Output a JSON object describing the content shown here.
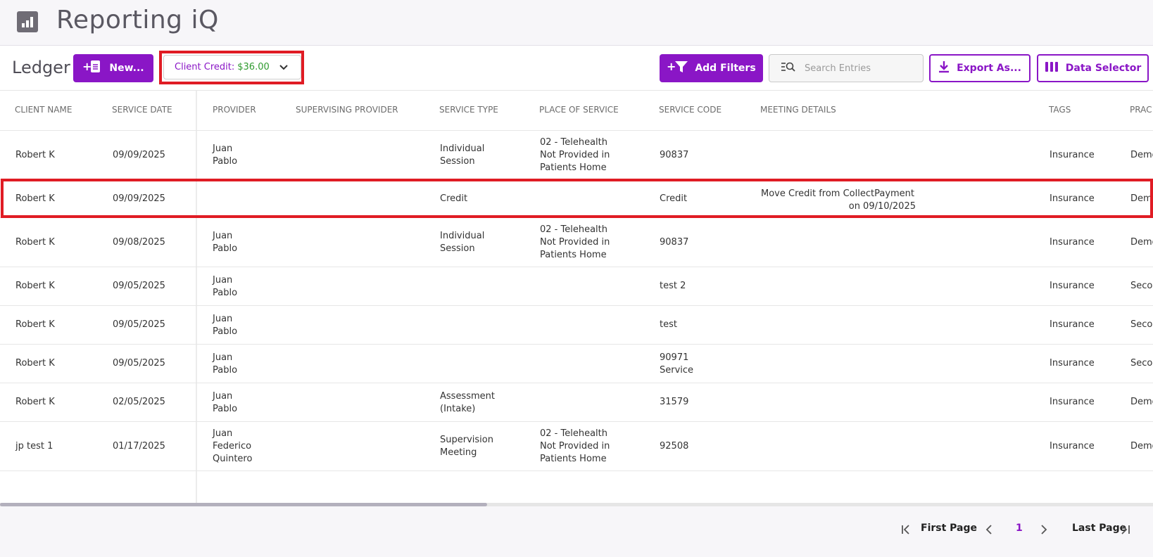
{
  "app": {
    "title": "Reporting iQ"
  },
  "toolbar": {
    "ledger_title": "Ledger",
    "new_label": "New...",
    "client_credit_label": "Client Credit:",
    "client_credit_value": "$36.00",
    "add_filters_label": "Add Filters",
    "search_placeholder": "Search Entries",
    "export_label": "Export As...",
    "data_selector_label": "Data Selector"
  },
  "table": {
    "headers": [
      "CLIENT NAME",
      "SERVICE DATE",
      "PROVIDER",
      "SUPERVISING PROVIDER",
      "SERVICE TYPE",
      "PLACE OF SERVICE",
      "SERVICE CODE",
      "MEETING DETAILS",
      "TAGS",
      "PRAC"
    ],
    "rows": [
      {
        "client": "Robert K",
        "date": "09/09/2025",
        "provider": "Juan Pablo",
        "supervising": "",
        "service_type": "Individual Session",
        "place": "02 - Telehealth Not Provided in Patients Home",
        "code": "90837",
        "meeting_1": "",
        "meeting_2": "",
        "tags": "Insurance",
        "prac": "Demo"
      },
      {
        "client": "Robert K",
        "date": "09/09/2025",
        "provider": "",
        "supervising": "",
        "service_type": "Credit",
        "place": "",
        "code": "Credit",
        "meeting_1": "Move Credit from CollectPayment",
        "meeting_2": "on 09/10/2025",
        "tags": "Insurance",
        "prac": "Demo"
      },
      {
        "client": "Robert K",
        "date": "09/08/2025",
        "provider": "Juan Pablo",
        "supervising": "",
        "service_type": "Individual Session",
        "place": "02 - Telehealth Not Provided in Patients Home",
        "code": "90837",
        "meeting_1": "",
        "meeting_2": "",
        "tags": "Insurance",
        "prac": "Demo"
      },
      {
        "client": "Robert K",
        "date": "09/05/2025",
        "provider": "Juan Pablo",
        "supervising": "",
        "service_type": "",
        "place": "",
        "code": "test 2",
        "meeting_1": "",
        "meeting_2": "",
        "tags": "Insurance",
        "prac": "Secon"
      },
      {
        "client": "Robert K",
        "date": "09/05/2025",
        "provider": "Juan Pablo",
        "supervising": "",
        "service_type": "",
        "place": "",
        "code": "test",
        "meeting_1": "",
        "meeting_2": "",
        "tags": "Insurance",
        "prac": "Secon"
      },
      {
        "client": "Robert K",
        "date": "09/05/2025",
        "provider": "Juan Pablo",
        "supervising": "",
        "service_type": "",
        "place": "",
        "code": "90971 Service",
        "meeting_1": "",
        "meeting_2": "",
        "tags": "Insurance",
        "prac": "Secon"
      },
      {
        "client": "Robert K",
        "date": "02/05/2025",
        "provider": "Juan Pablo",
        "supervising": "",
        "service_type": "Assessment (Intake)",
        "place": "",
        "code": "31579",
        "meeting_1": "",
        "meeting_2": "",
        "tags": "Insurance",
        "prac": "Demo"
      },
      {
        "client": "jp test 1",
        "date": "01/17/2025",
        "provider": "Juan Federico Quintero",
        "supervising": "",
        "service_type": "Supervision Meeting",
        "place": "02 - Telehealth Not Provided in Patients Home",
        "code": "92508",
        "meeting_1": "",
        "meeting_2": "",
        "tags": "Insurance",
        "prac": "Demo"
      }
    ]
  },
  "pagination": {
    "first_label": "First Page",
    "current_page": "1",
    "last_label": "Last Page"
  },
  "colors": {
    "accent": "#8a16c6",
    "credit_value": "#2f9a2f",
    "highlight": "#e01c24"
  }
}
